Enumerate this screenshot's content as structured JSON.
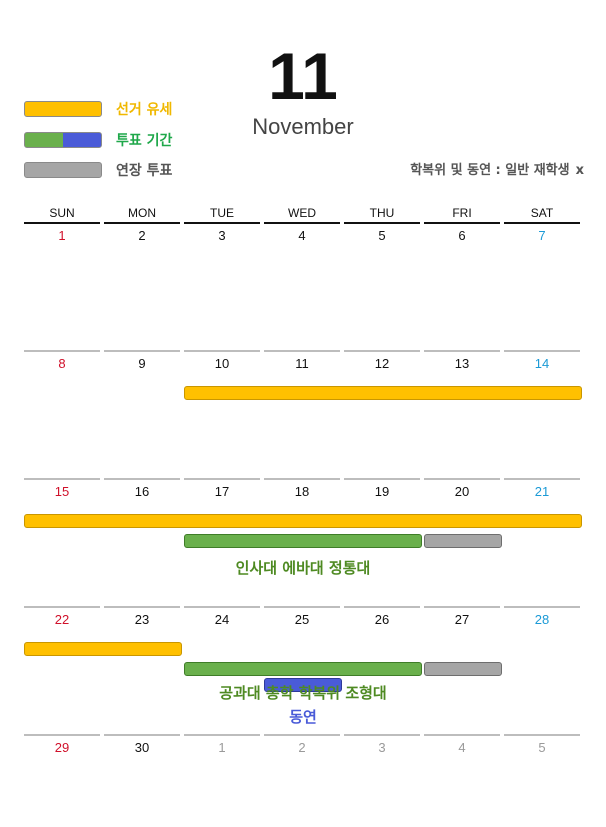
{
  "header": {
    "month_number": "11",
    "month_name": "November"
  },
  "legend": [
    {
      "label": "선거 유세",
      "color": "#f0b800",
      "swatch": [
        "#ffc000"
      ]
    },
    {
      "label": "투표 기간",
      "color": "#1fa84a",
      "swatch": [
        "#6ab04c",
        "#4a5bd8"
      ]
    },
    {
      "label": "연장 투표",
      "color": "#555555",
      "swatch": [
        "#a6a6a6"
      ]
    }
  ],
  "filter": {
    "text": "학복위 및 동연 : 일반 재학생",
    "close": "x"
  },
  "calendar": {
    "weekdays": [
      "SUN",
      "MON",
      "TUE",
      "WED",
      "THU",
      "FRI",
      "SAT"
    ],
    "weeks": [
      [
        "1",
        "2",
        "3",
        "4",
        "5",
        "6",
        "7"
      ],
      [
        "8",
        "9",
        "10",
        "11",
        "12",
        "13",
        "14"
      ],
      [
        "15",
        "16",
        "17",
        "18",
        "19",
        "20",
        "21"
      ],
      [
        "22",
        "23",
        "24",
        "25",
        "26",
        "27",
        "28"
      ],
      [
        "29",
        "30",
        "1",
        "2",
        "3",
        "4",
        "5"
      ]
    ],
    "colors": {
      "sunday": "#d0102a",
      "saturday": "#1b9ad6",
      "weekday": "#111111",
      "other_month": "#9a9a9a"
    }
  },
  "events": [
    {
      "type": "campaign",
      "week": 1,
      "start_day": 2,
      "end_day": 6,
      "color": "#ffc000"
    },
    {
      "type": "campaign",
      "week": 2,
      "start_day": 0,
      "end_day": 6,
      "color": "#ffc000"
    },
    {
      "type": "voting",
      "week": 2,
      "start_day": 2,
      "end_day": 4,
      "color": "#6ab04c"
    },
    {
      "type": "extended",
      "week": 2,
      "start_day": 5,
      "end_day": 5,
      "color": "#a6a6a6"
    },
    {
      "type": "campaign",
      "week": 3,
      "start_day": 0,
      "end_day": 1,
      "color": "#ffc000"
    },
    {
      "type": "voting",
      "week": 3,
      "start_day": 2,
      "end_day": 4,
      "color": "#6ab04c"
    },
    {
      "type": "extended",
      "week": 3,
      "start_day": 5,
      "end_day": 5,
      "color": "#a6a6a6"
    },
    {
      "type": "voting-dongyeon",
      "week": 3,
      "start_day": 3,
      "end_day": 3,
      "color": "#4a5bd8"
    }
  ],
  "notes": [
    {
      "text": "인사대 에바대 정통대",
      "color": "#4e8a22"
    },
    {
      "text": "공과대 총학 학복위 조형대",
      "color": "#4e8a22"
    },
    {
      "text": "동연",
      "color": "#4a5bd8"
    }
  ]
}
